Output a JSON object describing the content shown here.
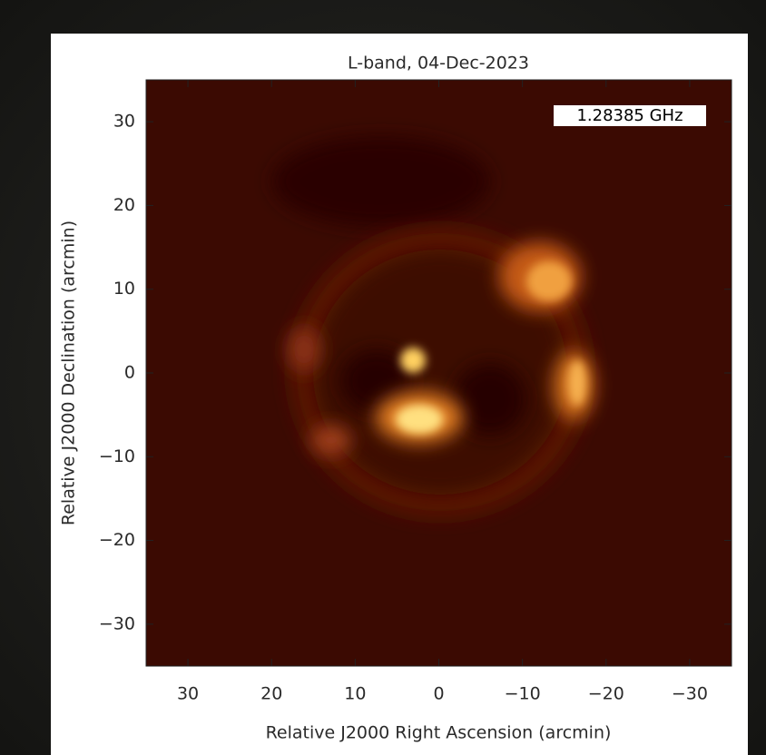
{
  "chart_data": {
    "type": "image",
    "title": "L-band, 04-Dec-2023",
    "annotation": "1.28385 GHz",
    "xlabel": "Relative J2000 Right Ascension (arcmin)",
    "ylabel": "Relative J2000 Declination (arcmin)",
    "xlim": [
      35,
      -35
    ],
    "ylim": [
      -35,
      35
    ],
    "xticks": [
      30,
      20,
      10,
      0,
      {
        "value": -10,
        "label": "−10"
      },
      {
        "value": -20,
        "label": "−20"
      },
      {
        "value": -30,
        "label": "−30"
      }
    ],
    "yticks": [
      {
        "value": -30,
        "label": "−30"
      },
      {
        "value": -20,
        "label": "−20"
      },
      {
        "value": -10,
        "label": "−10"
      },
      0,
      10,
      20,
      30
    ]
  }
}
